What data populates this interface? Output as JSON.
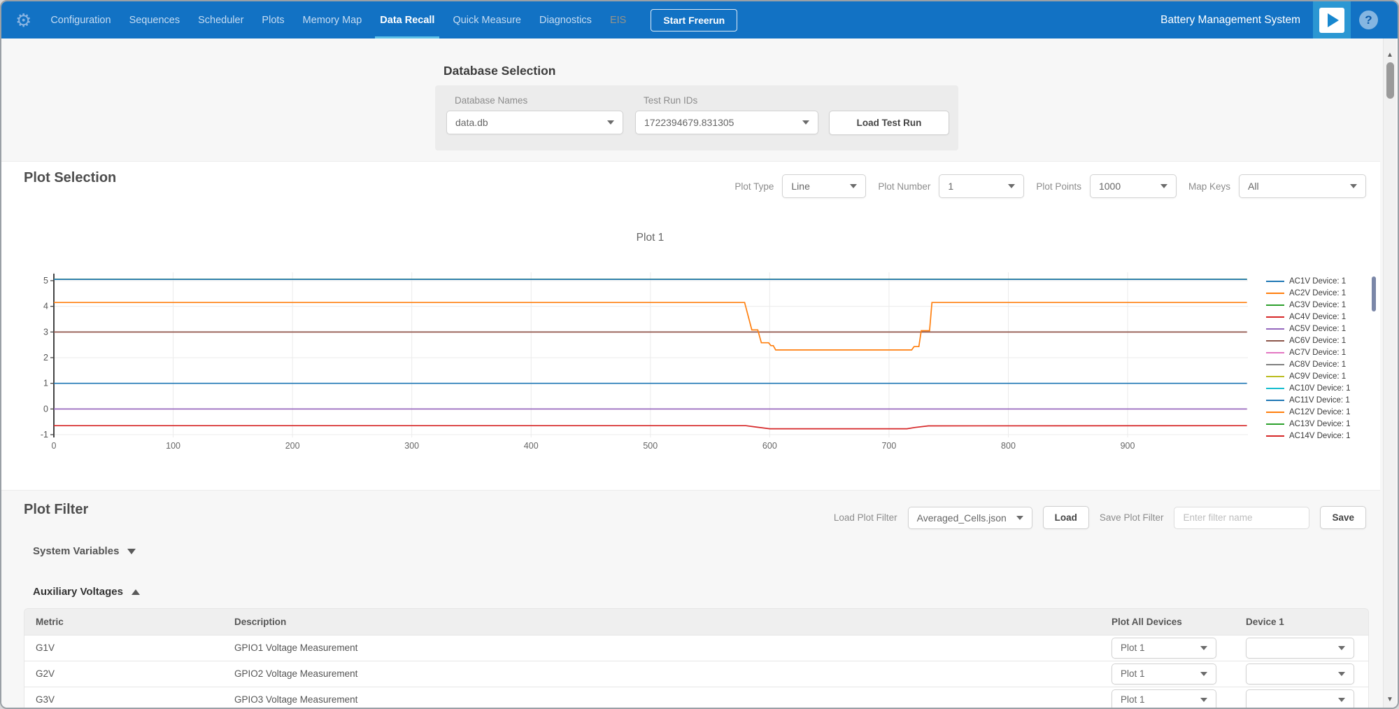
{
  "app": {
    "title": "Battery Management System"
  },
  "theme": {
    "nav_blue": "#1272c4",
    "active_underline": "#5ec1e8",
    "play_button_blue": "#2b97d3",
    "section_gray": "#f7f7f7",
    "panel_gray": "#ececec"
  },
  "nav": {
    "items": [
      {
        "label": "Configuration",
        "active": false,
        "disabled": false
      },
      {
        "label": "Sequences",
        "active": false,
        "disabled": false
      },
      {
        "label": "Scheduler",
        "active": false,
        "disabled": false
      },
      {
        "label": "Plots",
        "active": false,
        "disabled": false
      },
      {
        "label": "Memory Map",
        "active": false,
        "disabled": false
      },
      {
        "label": "Data Recall",
        "active": true,
        "disabled": false
      },
      {
        "label": "Quick Measure",
        "active": false,
        "disabled": false
      },
      {
        "label": "Diagnostics",
        "active": false,
        "disabled": false
      },
      {
        "label": "EIS",
        "active": false,
        "disabled": true
      }
    ],
    "start_freerun_label": "Start Freerun"
  },
  "database_selection": {
    "title": "Database Selection",
    "database_names_label": "Database Names",
    "database_names_value": "data.db",
    "test_run_ids_label": "Test Run IDs",
    "test_run_ids_value": "1722394679.831305",
    "load_button_label": "Load Test Run"
  },
  "plot_selection": {
    "title": "Plot Selection",
    "controls": [
      {
        "label": "Plot Type",
        "value": "Line"
      },
      {
        "label": "Plot Number",
        "value": "1"
      },
      {
        "label": "Plot Points",
        "value": "1000"
      },
      {
        "label": "Map Keys",
        "value": "All"
      }
    ]
  },
  "chart_data": {
    "type": "line",
    "title": "Plot 1",
    "xlabel": "",
    "ylabel": "",
    "xlim": [
      0,
      1000
    ],
    "ylim": [
      -1.3,
      5.45
    ],
    "xticks": [
      0,
      100,
      200,
      300,
      400,
      500,
      600,
      700,
      800,
      900
    ],
    "yticks": [
      5,
      4,
      3,
      2,
      1,
      0,
      -1
    ],
    "grid": true,
    "legend_position": "right",
    "series": [
      {
        "name": "AC1V Device: 1",
        "color": "#1f77b4",
        "points": [
          [
            0,
            5.05
          ],
          [
            1000,
            5.05
          ]
        ]
      },
      {
        "name": "AC2V Device: 1",
        "color": "#ff7f0e",
        "points": [
          [
            0,
            4.15
          ],
          [
            579,
            4.15
          ],
          [
            585,
            3.08
          ],
          [
            590,
            3.08
          ],
          [
            593,
            2.58
          ],
          [
            599,
            2.58
          ],
          [
            601,
            2.47
          ],
          [
            603,
            2.47
          ],
          [
            605,
            2.3
          ],
          [
            719,
            2.3
          ],
          [
            721,
            2.43
          ],
          [
            725,
            2.43
          ],
          [
            727,
            3.05
          ],
          [
            734,
            3.05
          ],
          [
            736,
            4.15
          ],
          [
            1000,
            4.15
          ]
        ]
      },
      {
        "name": "AC3V Device: 1",
        "color": "#2ca02c",
        "points": [
          [
            0,
            5.05
          ],
          [
            1000,
            5.05
          ]
        ]
      },
      {
        "name": "AC4V Device: 1",
        "color": "#d62728",
        "points": [
          [
            0,
            -0.65
          ],
          [
            580,
            -0.65
          ],
          [
            588,
            -0.7
          ],
          [
            600,
            -0.77
          ],
          [
            715,
            -0.77
          ],
          [
            722,
            -0.72
          ],
          [
            733,
            -0.66
          ],
          [
            1000,
            -0.65
          ]
        ]
      },
      {
        "name": "AC5V Device: 1",
        "color": "#9467bd",
        "points": [
          [
            0,
            0.0
          ],
          [
            1000,
            0.0
          ]
        ]
      },
      {
        "name": "AC6V Device: 1",
        "color": "#8c564b",
        "points": [
          [
            0,
            3.0
          ],
          [
            1000,
            3.0
          ]
        ]
      },
      {
        "name": "AC7V Device: 1",
        "color": "#e377c2",
        "points": [
          [
            0,
            0.0
          ],
          [
            1000,
            0.0
          ]
        ]
      },
      {
        "name": "AC8V Device: 1",
        "color": "#7f7f7f",
        "points": [
          [
            0,
            5.05
          ],
          [
            1000,
            5.05
          ]
        ]
      },
      {
        "name": "AC9V Device: 1",
        "color": "#bcbd22",
        "points": [
          [
            0,
            5.05
          ],
          [
            1000,
            5.05
          ]
        ]
      },
      {
        "name": "AC10V Device: 1",
        "color": "#17becf",
        "points": [
          [
            0,
            5.05
          ],
          [
            1000,
            5.05
          ]
        ]
      },
      {
        "name": "AC11V Device: 1",
        "color": "#1f77b4",
        "points": [
          [
            0,
            1.0
          ],
          [
            1000,
            1.0
          ]
        ]
      },
      {
        "name": "AC12V Device: 1",
        "color": "#ff7f0e",
        "points": [
          [
            0,
            5.05
          ],
          [
            1000,
            5.05
          ]
        ]
      },
      {
        "name": "AC13V Device: 1",
        "color": "#2ca02c",
        "points": [
          [
            0,
            5.05
          ],
          [
            1000,
            5.05
          ]
        ]
      },
      {
        "name": "AC14V Device: 1",
        "color": "#d62728",
        "points": [
          [
            0,
            3.0
          ],
          [
            1000,
            3.0
          ]
        ]
      }
    ]
  },
  "plot_filter": {
    "title": "Plot Filter",
    "load_label": "Load Plot Filter",
    "load_value": "Averaged_Cells.json",
    "load_button": "Load",
    "save_label": "Save Plot Filter",
    "save_placeholder": "Enter filter name",
    "save_button": "Save",
    "groups": [
      {
        "label": "System Variables",
        "expanded": false
      },
      {
        "label": "Auxiliary Voltages",
        "expanded": true
      }
    ],
    "table": {
      "headers": [
        "Metric",
        "Description",
        "Plot All Devices",
        "Device 1"
      ],
      "rows": [
        {
          "metric": "G1V",
          "description": "GPIO1 Voltage Measurement",
          "plot_all": "Plot 1",
          "device1": ""
        },
        {
          "metric": "G2V",
          "description": "GPIO2 Voltage Measurement",
          "plot_all": "Plot 1",
          "device1": ""
        },
        {
          "metric": "G3V",
          "description": "GPIO3 Voltage Measurement",
          "plot_all": "Plot 1",
          "device1": ""
        }
      ]
    }
  }
}
